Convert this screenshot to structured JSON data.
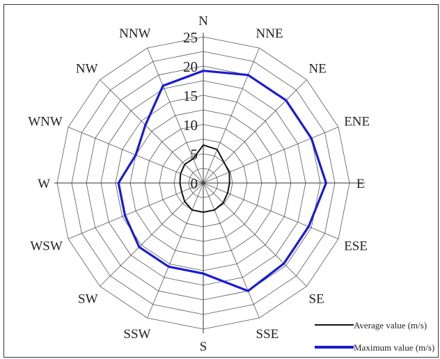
{
  "chart_data": {
    "type": "radar",
    "directions": [
      "N",
      "NNE",
      "NE",
      "ENE",
      "E",
      "ESE",
      "SE",
      "SSE",
      "S",
      "SSW",
      "SW",
      "WSW",
      "W",
      "WNW",
      "NW",
      "NNW"
    ],
    "rlim": [
      0,
      25
    ],
    "rticks": [
      "0",
      "5",
      "10",
      "15",
      "20",
      "25"
    ],
    "grid": true,
    "series": [
      {
        "name": "Average value (m/s)",
        "color": "#111111",
        "values": [
          6.5,
          6.2,
          5.0,
          4.8,
          4.5,
          4.5,
          4.8,
          5.0,
          5.0,
          5.0,
          4.5,
          4.0,
          4.0,
          4.2,
          4.5,
          4.5
        ]
      },
      {
        "name": "Maximum value (m/s)",
        "color": "#1a1ad8",
        "values": [
          19.2,
          20.0,
          20.0,
          20.0,
          21.0,
          19.5,
          19.5,
          20.0,
          15.5,
          15.5,
          15.5,
          14.5,
          14.5,
          12.5,
          14.0,
          18.0
        ]
      }
    ],
    "legend_position": "bottom-right"
  }
}
